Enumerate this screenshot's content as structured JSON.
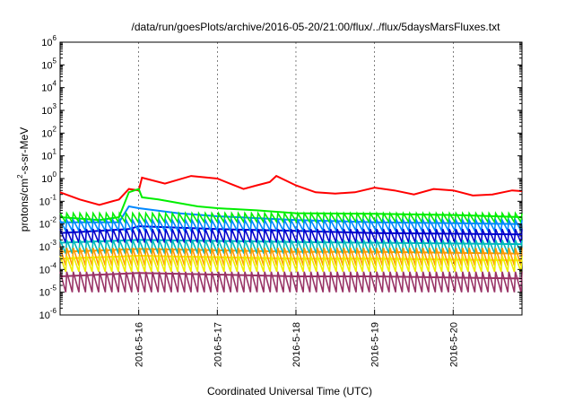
{
  "chart_data": {
    "type": "line",
    "title": "/data/run/goesPlots/archive/2016-05-20/21:00/flux/../flux/5daysMarsFluxes.txt",
    "xlabel": "Coordinated Universal Time (UTC)",
    "ylabel_main": "protons/cm",
    "ylabel_sup": "2",
    "ylabel_rest": "-s-sr-MeV",
    "yscale": "log",
    "ylim": [
      1e-06,
      1000000.0
    ],
    "xlim": [
      "2016-05-15 00:00",
      "2016-05-20 21:00"
    ],
    "x_ticks": [
      "2016-5-16",
      "2016-5-17",
      "2016-5-18",
      "2016-5-19",
      "2016-5-20"
    ],
    "y_ticks": [
      {
        "base": "10",
        "exp": "-6"
      },
      {
        "base": "10",
        "exp": "-5"
      },
      {
        "base": "10",
        "exp": "-4"
      },
      {
        "base": "10",
        "exp": "-3"
      },
      {
        "base": "10",
        "exp": "-2"
      },
      {
        "base": "10",
        "exp": "-1"
      },
      {
        "base": "10",
        "exp": "0"
      },
      {
        "base": "10",
        "exp": "1"
      },
      {
        "base": "10",
        "exp": "2"
      },
      {
        "base": "10",
        "exp": "3"
      },
      {
        "base": "10",
        "exp": "4"
      },
      {
        "base": "10",
        "exp": "5"
      },
      {
        "base": "10",
        "exp": "6"
      }
    ],
    "series": [
      {
        "color": "#ff0000",
        "points": [
          [
            "2016-05-15 00:00",
            0.25
          ],
          [
            "2016-05-15 06:00",
            0.12
          ],
          [
            "2016-05-15 12:00",
            0.07
          ],
          [
            "2016-05-15 18:00",
            0.12
          ],
          [
            "2016-05-15 21:00",
            0.35
          ],
          [
            "2016-05-16 00:00",
            0.3
          ],
          [
            "2016-05-16 01:00",
            1.1
          ],
          [
            "2016-05-16 08:00",
            0.6
          ],
          [
            "2016-05-16 16:00",
            1.3
          ],
          [
            "2016-05-17 00:00",
            1.0
          ],
          [
            "2016-05-17 08:00",
            0.35
          ],
          [
            "2016-05-17 12:00",
            0.5
          ],
          [
            "2016-05-17 16:00",
            0.7
          ],
          [
            "2016-05-17 18:00",
            1.3
          ],
          [
            "2016-05-18 00:00",
            0.5
          ],
          [
            "2016-05-18 06:00",
            0.25
          ],
          [
            "2016-05-18 12:00",
            0.22
          ],
          [
            "2016-05-18 18:00",
            0.25
          ],
          [
            "2016-05-19 00:00",
            0.4
          ],
          [
            "2016-05-19 06:00",
            0.3
          ],
          [
            "2016-05-19 12:00",
            0.2
          ],
          [
            "2016-05-19 18:00",
            0.35
          ],
          [
            "2016-05-20 00:00",
            0.3
          ],
          [
            "2016-05-20 06:00",
            0.18
          ],
          [
            "2016-05-20 12:00",
            0.2
          ],
          [
            "2016-05-20 18:00",
            0.3
          ],
          [
            "2016-05-20 21:00",
            0.28
          ]
        ]
      },
      {
        "color": "#00ee00",
        "points": [
          [
            "2016-05-15 00:00",
            0.02
          ],
          [
            "2016-05-15 12:00",
            0.015
          ],
          [
            "2016-05-15 18:00",
            0.02
          ],
          [
            "2016-05-15 21:00",
            0.25
          ],
          [
            "2016-05-16 00:00",
            0.35
          ],
          [
            "2016-05-16 01:00",
            0.15
          ],
          [
            "2016-05-16 06:00",
            0.12
          ],
          [
            "2016-05-16 18:00",
            0.06
          ],
          [
            "2016-05-17 00:00",
            0.05
          ],
          [
            "2016-05-17 12:00",
            0.04
          ],
          [
            "2016-05-18 00:00",
            0.03
          ],
          [
            "2016-05-19 00:00",
            0.028
          ],
          [
            "2016-05-20 00:00",
            0.025
          ],
          [
            "2016-05-20 21:00",
            0.02
          ]
        ]
      },
      {
        "color": "#0088ff",
        "points": [
          [
            "2016-05-15 00:00",
            0.012
          ],
          [
            "2016-05-15 18:00",
            0.012
          ],
          [
            "2016-05-15 21:00",
            0.06
          ],
          [
            "2016-05-16 00:00",
            0.05
          ],
          [
            "2016-05-16 12:00",
            0.03
          ],
          [
            "2016-05-17 00:00",
            0.022
          ],
          [
            "2016-05-18 00:00",
            0.015
          ],
          [
            "2016-05-19 00:00",
            0.012
          ],
          [
            "2016-05-20 21:00",
            0.01
          ]
        ]
      },
      {
        "color": "#0000cc",
        "points": [
          [
            "2016-05-15 00:00",
            0.004
          ],
          [
            "2016-05-15 21:00",
            0.006
          ],
          [
            "2016-05-16 00:00",
            0.008
          ],
          [
            "2016-05-17 00:00",
            0.006
          ],
          [
            "2016-05-18 00:00",
            0.005
          ],
          [
            "2016-05-19 00:00",
            0.004
          ],
          [
            "2016-05-20 21:00",
            0.0035
          ]
        ]
      },
      {
        "color": "#00bbbb",
        "points": [
          [
            "2016-05-15 00:00",
            0.0015
          ],
          [
            "2016-05-16 00:00",
            0.002
          ],
          [
            "2016-05-17 00:00",
            0.0018
          ],
          [
            "2016-05-18 00:00",
            0.0016
          ],
          [
            "2016-05-19 00:00",
            0.0015
          ],
          [
            "2016-05-20 21:00",
            0.0013
          ]
        ]
      },
      {
        "color": "#ff9900",
        "points": [
          [
            "2016-05-15 00:00",
            0.0006
          ],
          [
            "2016-05-16 00:00",
            0.0008
          ],
          [
            "2016-05-17 00:00",
            0.0007
          ],
          [
            "2016-05-18 00:00",
            0.0006
          ],
          [
            "2016-05-19 00:00",
            0.0006
          ],
          [
            "2016-05-20 21:00",
            0.0005
          ]
        ]
      },
      {
        "color": "#eeee00",
        "points": [
          [
            "2016-05-15 00:00",
            0.0003
          ],
          [
            "2016-05-16 00:00",
            0.0004
          ],
          [
            "2016-05-17 00:00",
            0.00035
          ],
          [
            "2016-05-18 00:00",
            0.0003
          ],
          [
            "2016-05-19 00:00",
            0.0003
          ],
          [
            "2016-05-20 21:00",
            0.00025
          ]
        ]
      },
      {
        "color": "#993366",
        "points": [
          [
            "2016-05-15 00:00",
            5e-05
          ],
          [
            "2016-05-16 00:00",
            7e-05
          ],
          [
            "2016-05-17 00:00",
            6e-05
          ],
          [
            "2016-05-18 00:00",
            5e-05
          ],
          [
            "2016-05-19 00:00",
            5e-05
          ],
          [
            "2016-05-20 21:00",
            4e-05
          ]
        ]
      }
    ],
    "grid": "vertical at x ticks",
    "sawtooth_series": [
      {
        "color": "#00ee00",
        "low": 0.012,
        "high": 0.03
      },
      {
        "color": "#0088ff",
        "low": 0.005,
        "high": 0.015
      },
      {
        "color": "#0000cc",
        "low": 0.0015,
        "high": 0.006
      },
      {
        "color": "#00bbbb",
        "low": 0.0005,
        "high": 0.002
      },
      {
        "color": "#ff9900",
        "low": 0.00015,
        "high": 0.0009
      },
      {
        "color": "#eeee00",
        "low": 8e-05,
        "high": 0.0004
      },
      {
        "color": "#993366",
        "low": 1e-05,
        "high": 8e-05
      }
    ]
  }
}
